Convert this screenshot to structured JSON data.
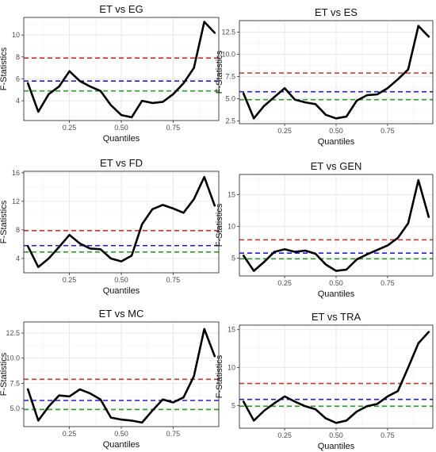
{
  "chart_data": [
    {
      "type": "line",
      "title": "ET vs EG",
      "xlabel": "Quantiles",
      "ylabel": "F-Statistics",
      "xlim": [
        0.03,
        0.97
      ],
      "ylim": [
        2.2,
        11.6
      ],
      "xticks": [
        0.25,
        0.5,
        0.75
      ],
      "xtick_labels": [
        "0.25",
        "0.50",
        "0.75"
      ],
      "yticks": [
        4,
        6,
        8,
        10
      ],
      "ytick_labels": [
        "4",
        "6",
        "8",
        "10"
      ],
      "grid": true,
      "x": [
        0.05,
        0.1,
        0.15,
        0.2,
        0.25,
        0.3,
        0.35,
        0.4,
        0.45,
        0.5,
        0.55,
        0.6,
        0.65,
        0.7,
        0.75,
        0.8,
        0.85,
        0.9,
        0.95
      ],
      "values": [
        5.6,
        3.0,
        4.6,
        5.3,
        6.7,
        5.8,
        5.3,
        4.9,
        3.6,
        2.7,
        2.5,
        4.0,
        3.8,
        3.9,
        4.6,
        5.6,
        7.0,
        11.2,
        10.2
      ],
      "reference_lines": [
        {
          "value": 7.9,
          "color": "#c0392b"
        },
        {
          "value": 5.8,
          "color": "#1f1fd6"
        },
        {
          "value": 4.9,
          "color": "#2ca02c"
        }
      ]
    },
    {
      "type": "line",
      "title": "ET vs ES",
      "xlabel": "Quantiles",
      "ylabel": "F-Statistics",
      "xlim": [
        0.03,
        0.97
      ],
      "ylim": [
        2.2,
        13.8
      ],
      "xticks": [
        0.25,
        0.5,
        0.75
      ],
      "xtick_labels": [
        "0.25",
        "0.50",
        "0.75"
      ],
      "yticks": [
        2.5,
        5.0,
        7.5,
        10.0,
        12.5
      ],
      "ytick_labels": [
        "2.5",
        "5.0",
        "7.5",
        "10.0",
        "12.5"
      ],
      "grid": true,
      "x": [
        0.05,
        0.1,
        0.15,
        0.2,
        0.25,
        0.3,
        0.35,
        0.4,
        0.45,
        0.5,
        0.55,
        0.6,
        0.65,
        0.7,
        0.75,
        0.8,
        0.85,
        0.9,
        0.95
      ],
      "values": [
        5.6,
        2.8,
        4.2,
        5.2,
        6.2,
        4.9,
        4.6,
        4.4,
        3.2,
        2.8,
        3.0,
        4.8,
        5.4,
        5.5,
        6.2,
        7.2,
        8.3,
        13.2,
        12.0
      ],
      "reference_lines": [
        {
          "value": 7.9,
          "color": "#c0392b"
        },
        {
          "value": 5.8,
          "color": "#1f1fd6"
        },
        {
          "value": 4.9,
          "color": "#2ca02c"
        }
      ]
    },
    {
      "type": "line",
      "title": "ET vs FD",
      "xlabel": "Quantiles",
      "ylabel": "F-Statistics",
      "xlim": [
        0.03,
        0.97
      ],
      "ylim": [
        2.0,
        16.2
      ],
      "xticks": [
        0.25,
        0.5,
        0.75
      ],
      "xtick_labels": [
        "0.25",
        "0.50",
        "0.75"
      ],
      "yticks": [
        4,
        8,
        12,
        16
      ],
      "ytick_labels": [
        "4",
        "8",
        "12",
        "16"
      ],
      "grid": true,
      "x": [
        0.05,
        0.1,
        0.15,
        0.2,
        0.25,
        0.3,
        0.35,
        0.4,
        0.45,
        0.5,
        0.55,
        0.6,
        0.65,
        0.7,
        0.75,
        0.8,
        0.85,
        0.9,
        0.95
      ],
      "values": [
        5.7,
        2.8,
        4.0,
        5.6,
        7.3,
        6.1,
        5.4,
        5.3,
        4.0,
        3.6,
        4.4,
        8.8,
        10.9,
        11.5,
        11.0,
        10.4,
        12.3,
        15.4,
        11.4
      ],
      "reference_lines": [
        {
          "value": 7.9,
          "color": "#c0392b"
        },
        {
          "value": 5.8,
          "color": "#1f1fd6"
        },
        {
          "value": 4.9,
          "color": "#2ca02c"
        }
      ]
    },
    {
      "type": "line",
      "title": "ET vs GEN",
      "xlabel": "Quantiles",
      "ylabel": "F-Statistics",
      "xlim": [
        0.03,
        0.97
      ],
      "ylim": [
        2.2,
        18.2
      ],
      "xticks": [
        0.25,
        0.5,
        0.75
      ],
      "xtick_labels": [
        "0.25",
        "0.50",
        "0.75"
      ],
      "yticks": [
        5,
        10,
        15
      ],
      "ytick_labels": [
        "5",
        "10",
        "15"
      ],
      "grid": true,
      "x": [
        0.05,
        0.1,
        0.15,
        0.2,
        0.25,
        0.3,
        0.35,
        0.4,
        0.45,
        0.5,
        0.55,
        0.6,
        0.65,
        0.7,
        0.75,
        0.8,
        0.85,
        0.9,
        0.95
      ],
      "values": [
        5.4,
        3.0,
        4.4,
        6.0,
        6.4,
        6.0,
        6.2,
        5.7,
        4.0,
        3.0,
        3.2,
        4.8,
        5.6,
        6.3,
        7.0,
        8.2,
        10.5,
        17.3,
        11.5
      ],
      "reference_lines": [
        {
          "value": 7.9,
          "color": "#c0392b"
        },
        {
          "value": 5.8,
          "color": "#1f1fd6"
        },
        {
          "value": 4.9,
          "color": "#2ca02c"
        }
      ]
    },
    {
      "type": "line",
      "title": "ET vs MC",
      "xlabel": "Quantiles",
      "ylabel": "F-Statistics",
      "xlim": [
        0.03,
        0.97
      ],
      "ylim": [
        3.2,
        13.6
      ],
      "xticks": [
        0.25,
        0.5,
        0.75
      ],
      "xtick_labels": [
        "0.25",
        "0.50",
        "0.75"
      ],
      "yticks": [
        5.0,
        7.5,
        10.0,
        12.5
      ],
      "ytick_labels": [
        "5.0",
        "7.5",
        "10.0",
        "12.5"
      ],
      "grid": true,
      "x": [
        0.05,
        0.1,
        0.15,
        0.2,
        0.25,
        0.3,
        0.35,
        0.4,
        0.45,
        0.5,
        0.55,
        0.6,
        0.65,
        0.7,
        0.75,
        0.8,
        0.85,
        0.9,
        0.95
      ],
      "values": [
        6.9,
        3.8,
        5.2,
        6.3,
        6.2,
        6.9,
        6.5,
        5.9,
        4.1,
        3.9,
        3.8,
        3.6,
        4.8,
        5.9,
        5.6,
        6.1,
        8.2,
        12.9,
        10.2
      ],
      "reference_lines": [
        {
          "value": 7.9,
          "color": "#c0392b"
        },
        {
          "value": 5.8,
          "color": "#1f1fd6"
        },
        {
          "value": 4.9,
          "color": "#2ca02c"
        }
      ]
    },
    {
      "type": "line",
      "title": "ET vs TRA",
      "xlabel": "Quantiles",
      "ylabel": "F-Statistics",
      "xlim": [
        0.03,
        0.97
      ],
      "ylim": [
        2.0,
        15.6
      ],
      "xticks": [
        0.25,
        0.5,
        0.75
      ],
      "xtick_labels": [
        "0.25",
        "0.50",
        "0.75"
      ],
      "yticks": [
        5,
        10,
        15
      ],
      "ytick_labels": [
        "5",
        "10",
        "15"
      ],
      "grid": true,
      "x": [
        0.05,
        0.1,
        0.15,
        0.2,
        0.25,
        0.3,
        0.35,
        0.4,
        0.45,
        0.5,
        0.55,
        0.6,
        0.65,
        0.7,
        0.75,
        0.8,
        0.85,
        0.9,
        0.95
      ],
      "values": [
        5.5,
        3.0,
        4.3,
        5.3,
        6.2,
        5.5,
        4.9,
        4.5,
        3.3,
        2.7,
        3.0,
        4.2,
        4.9,
        5.2,
        6.2,
        6.9,
        10.0,
        13.2,
        14.7
      ],
      "reference_lines": [
        {
          "value": 7.9,
          "color": "#c0392b"
        },
        {
          "value": 5.8,
          "color": "#1f1fd6"
        },
        {
          "value": 4.9,
          "color": "#2ca02c"
        }
      ]
    }
  ]
}
